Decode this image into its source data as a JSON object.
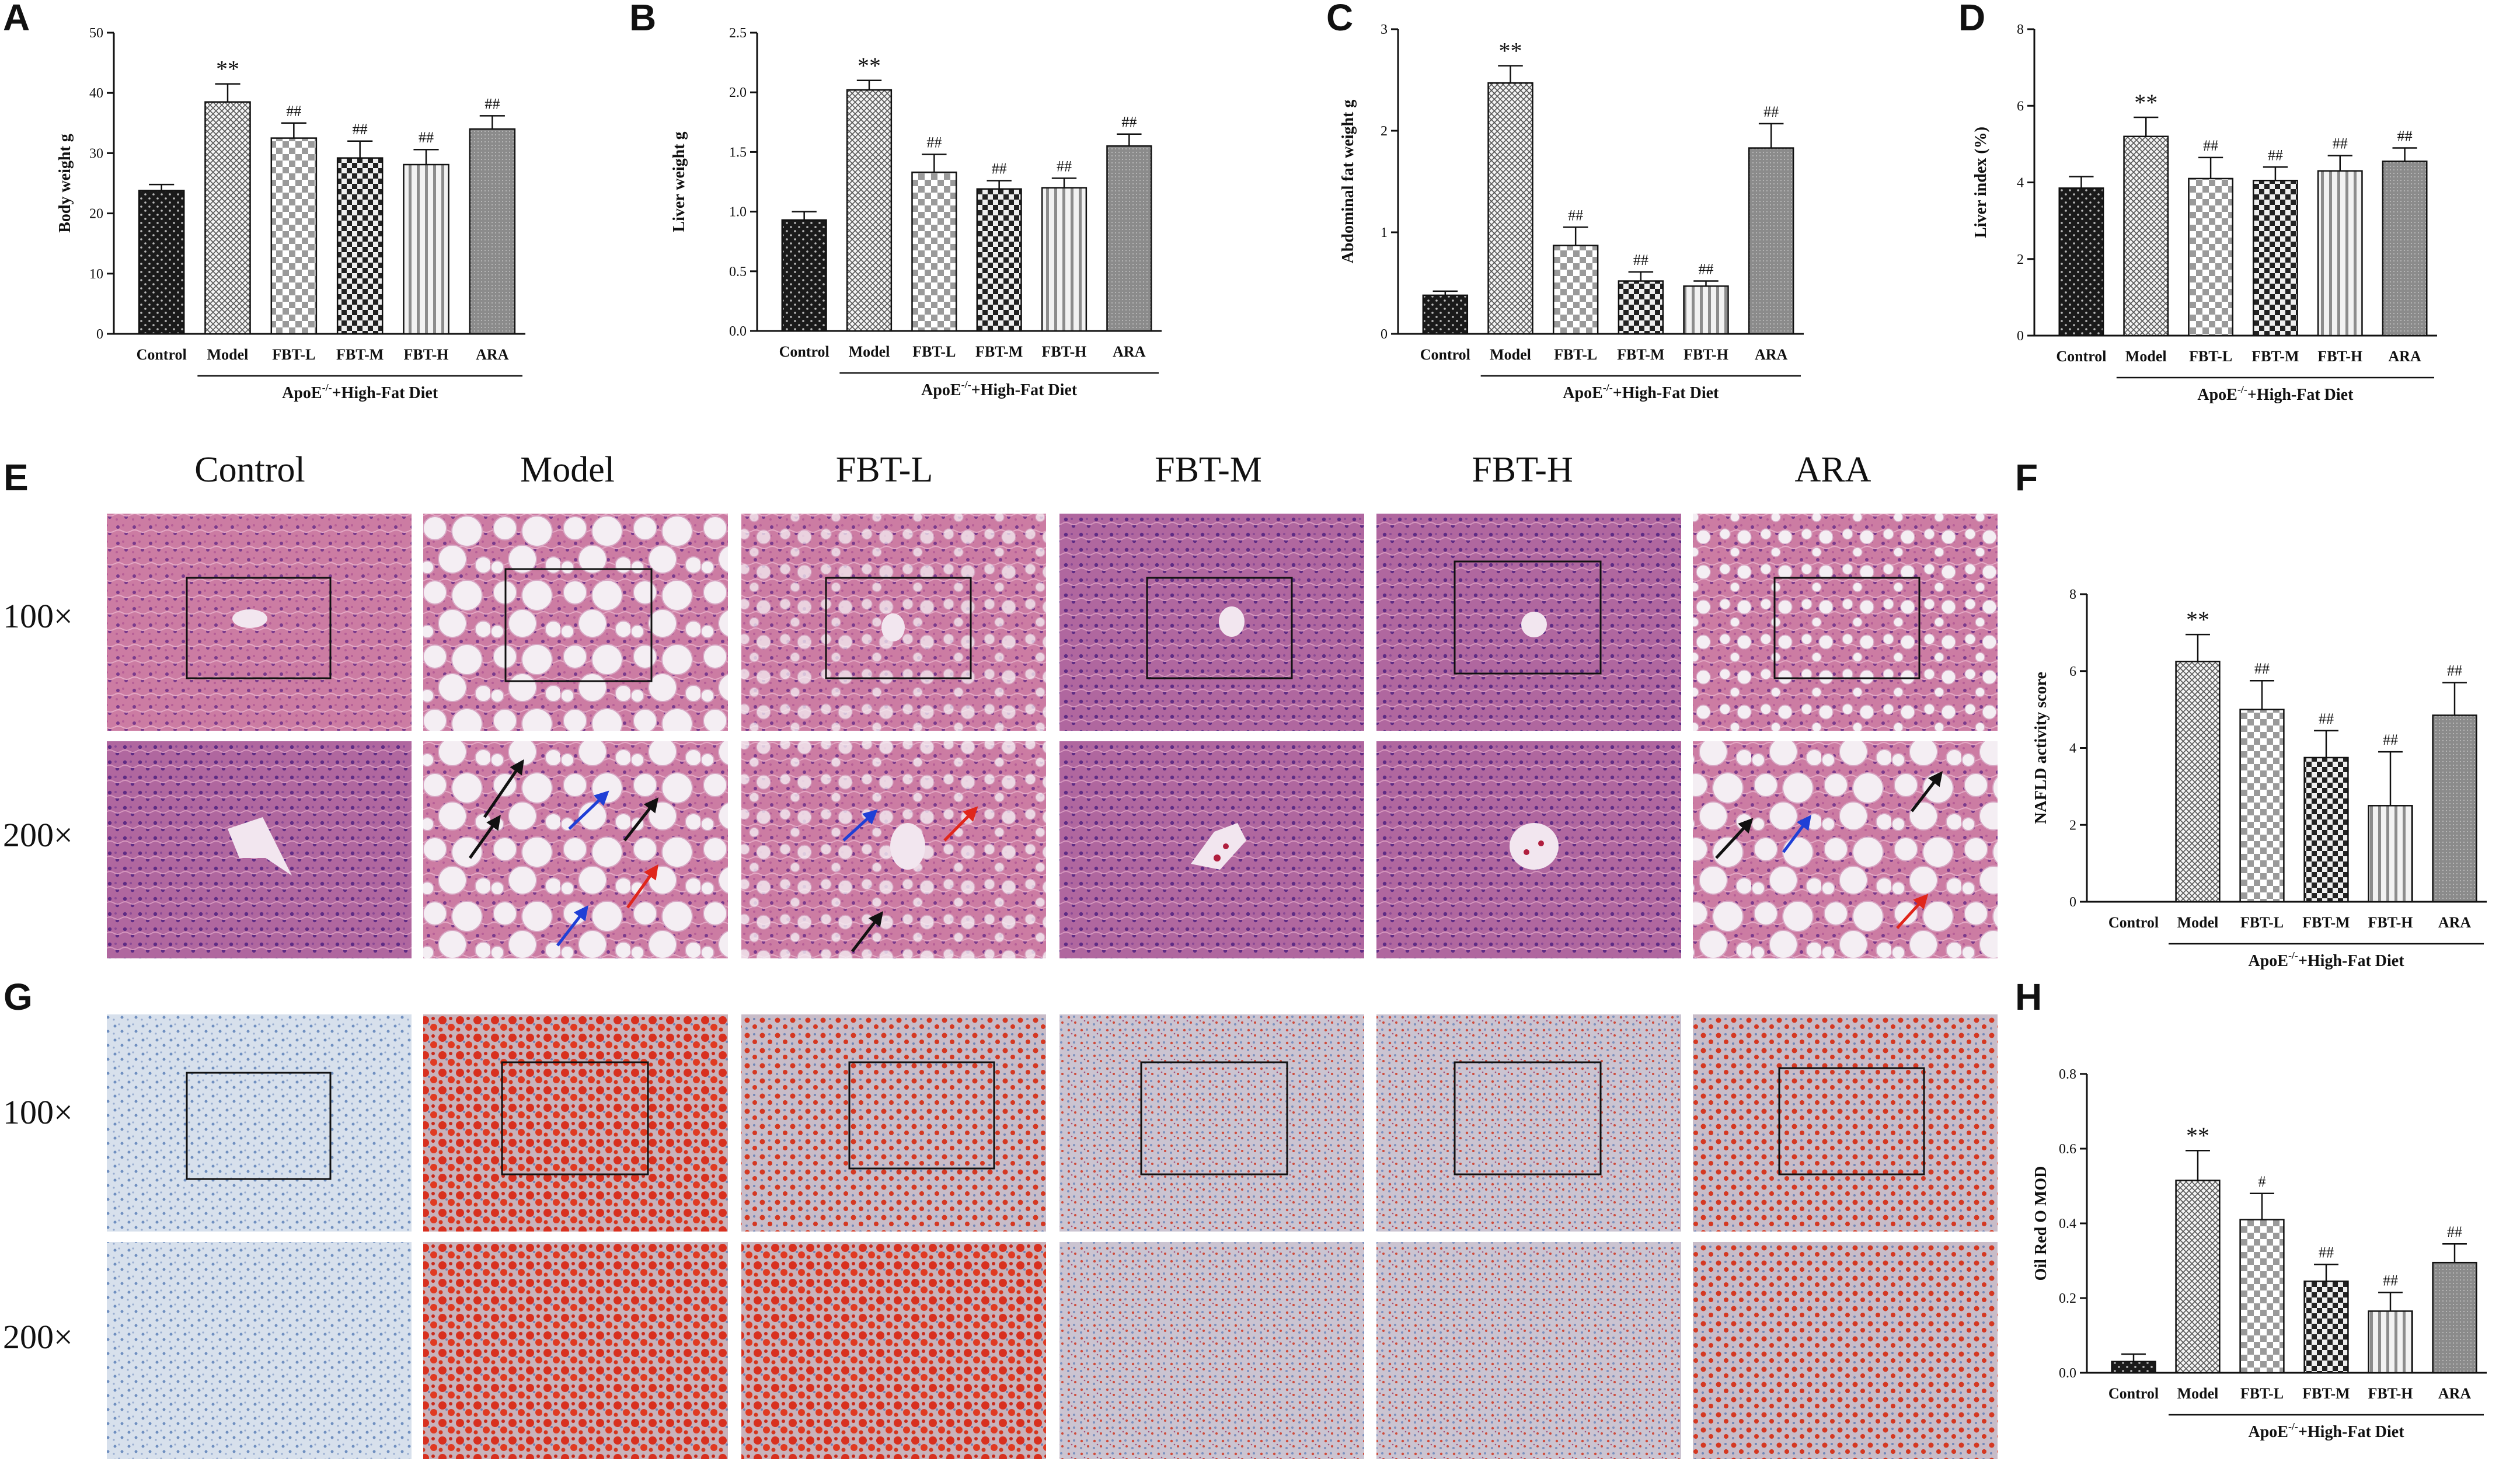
{
  "figure": {
    "column_headers": [
      "Control",
      "Model",
      "FBT-L",
      "FBT-M",
      "FBT-H",
      "ARA"
    ],
    "row_headers": [
      "100×",
      "200×"
    ],
    "panels": {
      "E": {
        "letter": "E",
        "stain": "he"
      },
      "G": {
        "letter": "G",
        "stain": "oro"
      }
    }
  },
  "colors": {
    "he_background": "#c9789f",
    "he_dark": "#8a3f86",
    "oro_blue": "#9bb3d4",
    "oro_red": "#d23a26",
    "bar_dark": "#222222",
    "arrow_black": "#111111",
    "arrow_blue": "#1f3fd6",
    "arrow_red": "#e0261b"
  },
  "chart_data": [
    {
      "id": "A",
      "type": "bar",
      "categories": [
        "Control",
        "Model",
        "FBT-L",
        "FBT-M",
        "FBT-H",
        "ARA"
      ],
      "values": [
        23.8,
        38.5,
        32.5,
        29.2,
        28.1,
        34.0
      ],
      "errors": [
        1.0,
        3.0,
        2.5,
        2.8,
        2.5,
        2.2
      ],
      "significance": [
        "",
        "**",
        "##",
        "##",
        "##",
        "##"
      ],
      "ylabel": "Body weight g",
      "ylim": [
        0,
        50
      ],
      "yticks": [
        0,
        10,
        20,
        30,
        40,
        50
      ],
      "group_label_prefix": "ApoE",
      "group_label_sup": "-/-",
      "group_label_suffix": "+High-Fat Diet"
    },
    {
      "id": "B",
      "type": "bar",
      "categories": [
        "Control",
        "Model",
        "FBT-L",
        "FBT-M",
        "FBT-H",
        "ARA"
      ],
      "values": [
        0.93,
        2.02,
        1.33,
        1.19,
        1.2,
        1.55
      ],
      "errors": [
        0.07,
        0.08,
        0.15,
        0.07,
        0.08,
        0.1
      ],
      "significance": [
        "",
        "**",
        "##",
        "##",
        "##",
        "##"
      ],
      "ylabel": "Liver weight g",
      "ylim": [
        0,
        2.5
      ],
      "yticks": [
        0.0,
        0.5,
        1.0,
        1.5,
        2.0,
        2.5
      ],
      "group_label_prefix": "ApoE",
      "group_label_sup": "-/-",
      "group_label_suffix": "+High-Fat Diet"
    },
    {
      "id": "C",
      "type": "bar",
      "categories": [
        "Control",
        "Model",
        "FBT-L",
        "FBT-M",
        "FBT-H",
        "ARA"
      ],
      "values": [
        0.38,
        2.47,
        0.87,
        0.52,
        0.47,
        1.83
      ],
      "errors": [
        0.04,
        0.17,
        0.18,
        0.09,
        0.05,
        0.24
      ],
      "significance": [
        "",
        "**",
        "##",
        "##",
        "##",
        "##"
      ],
      "ylabel": "Abdominal fat weight g",
      "ylim": [
        0,
        3
      ],
      "yticks": [
        0,
        1,
        2,
        3
      ],
      "group_label_prefix": "ApoE",
      "group_label_sup": "-/-",
      "group_label_suffix": "+High-Fat Diet"
    },
    {
      "id": "D",
      "type": "bar",
      "categories": [
        "Control",
        "Model",
        "FBT-L",
        "FBT-M",
        "FBT-H",
        "ARA"
      ],
      "values": [
        3.85,
        5.2,
        4.1,
        4.05,
        4.3,
        4.55
      ],
      "errors": [
        0.3,
        0.5,
        0.55,
        0.35,
        0.4,
        0.35
      ],
      "significance": [
        "",
        "**",
        "##",
        "##",
        "##",
        "##"
      ],
      "ylabel": "Liver index (%)",
      "ylim": [
        0,
        8
      ],
      "yticks": [
        0,
        2,
        4,
        6,
        8
      ],
      "group_label_prefix": "ApoE",
      "group_label_sup": "-/-",
      "group_label_suffix": "+High-Fat Diet"
    },
    {
      "id": "F",
      "type": "bar",
      "categories": [
        "Control",
        "Model",
        "FBT-L",
        "FBT-M",
        "FBT-H",
        "ARA"
      ],
      "values": [
        0,
        6.25,
        5.0,
        3.75,
        2.5,
        4.85
      ],
      "errors": [
        0,
        0.7,
        0.75,
        0.7,
        1.4,
        0.85
      ],
      "significance": [
        "",
        "**",
        "##",
        "##",
        "##",
        "##"
      ],
      "ylabel": "NAFLD activity score",
      "ylim": [
        0,
        8
      ],
      "yticks": [
        0,
        2,
        4,
        6,
        8
      ],
      "group_label_prefix": "ApoE",
      "group_label_sup": "-/-",
      "group_label_suffix": "+High-Fat Diet"
    },
    {
      "id": "H",
      "type": "bar",
      "categories": [
        "Control",
        "Model",
        "FBT-L",
        "FBT-M",
        "FBT-H",
        "ARA"
      ],
      "values": [
        0.03,
        0.515,
        0.41,
        0.245,
        0.165,
        0.295
      ],
      "errors": [
        0.02,
        0.08,
        0.07,
        0.045,
        0.05,
        0.05
      ],
      "significance": [
        "",
        "**",
        "#",
        "##",
        "##",
        "##"
      ],
      "ylabel": "Oil Red O MOD",
      "ylim": [
        0,
        0.8
      ],
      "yticks": [
        0.0,
        0.2,
        0.4,
        0.6,
        0.8
      ],
      "group_label_prefix": "ApoE",
      "group_label_sup": "-/-",
      "group_label_suffix": "+High-Fat Diet"
    }
  ]
}
